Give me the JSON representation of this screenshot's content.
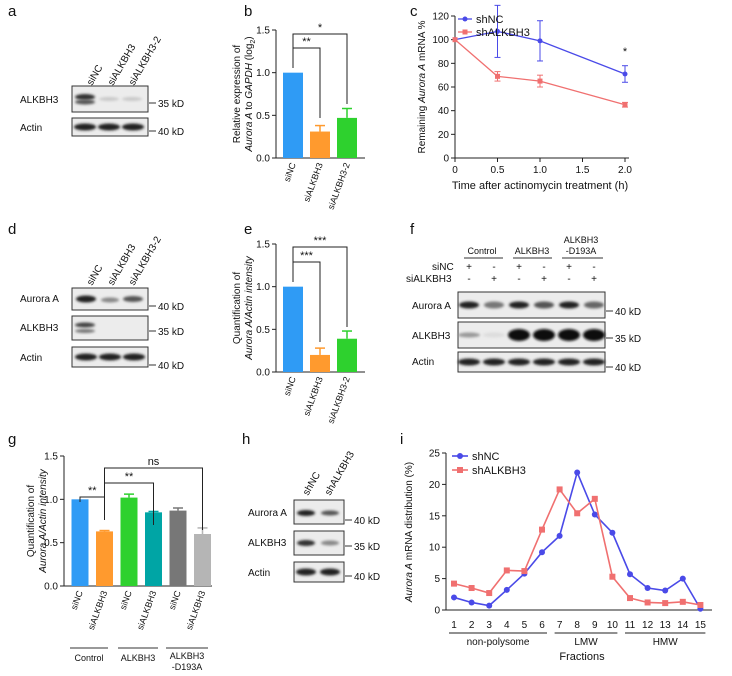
{
  "panels": {
    "a": {
      "letter": "a",
      "lanes": [
        "siNC",
        "siALKBH3",
        "siALKBH3-2"
      ],
      "rows": [
        "ALKBH3",
        "Actin"
      ],
      "markers": [
        "35 kD",
        "40 kD"
      ]
    },
    "d": {
      "letter": "d",
      "lanes": [
        "siNC",
        "siALKBH3",
        "siALKBH3-2"
      ],
      "rows": [
        "Aurora A",
        "ALKBH3",
        "Actin"
      ],
      "markers": [
        "40 kD",
        "35 kD",
        "40 kD"
      ]
    },
    "f": {
      "letter": "f",
      "groups": [
        "Control",
        "ALKBH3",
        "ALKBH3",
        "-D193A"
      ],
      "row_labels": [
        "siNC",
        "siALKBH3"
      ],
      "signs_nc": [
        "+",
        "-",
        "+",
        "-",
        "+",
        "-"
      ],
      "signs_si": [
        "-",
        "+",
        "-",
        "+",
        "-",
        "+"
      ],
      "rows": [
        "Aurora A",
        "ALKBH3",
        "Actin"
      ],
      "markers": [
        "40 kD",
        "35 kD",
        "40 kD"
      ]
    },
    "h": {
      "letter": "h",
      "lanes": [
        "shNC",
        "shALKBH3"
      ],
      "rows": [
        "Aurora A",
        "ALKBH3",
        "Actin"
      ],
      "markers": [
        "40 kD",
        "35 kD",
        "40 kD"
      ]
    },
    "g_groups": [
      "Control",
      "ALKBH3",
      "ALKBH3",
      "-D193A"
    ]
  },
  "chart_data": [
    {
      "id": "b",
      "letter": "b",
      "type": "bar",
      "ylabel_1": "Relative expression of",
      "ylabel_2_pre": "Aurora A",
      "ylabel_2_mid": " to ",
      "ylabel_2_gene": "GAPDH",
      "ylabel_2_post": " (log",
      "ylabel_sub": "2",
      "ylabel_close": ")",
      "categories": [
        "siNC",
        "siALKBH3",
        "siALKBH3-2"
      ],
      "values": [
        1.0,
        0.31,
        0.47
      ],
      "errors": [
        0,
        0.07,
        0.11
      ],
      "colors": [
        "#2f9bf5",
        "#ff9a2e",
        "#2ed12e"
      ],
      "ylim": [
        0,
        1.5
      ],
      "yticks": [
        "0.0",
        "0.5",
        "1.0",
        "1.5"
      ],
      "sig": [
        "**",
        "*"
      ]
    },
    {
      "id": "e",
      "letter": "e",
      "type": "bar",
      "ylabel_1": "Quantification of",
      "ylabel_2": "Aurora A/Actin intensity",
      "categories": [
        "siNC",
        "siALKBH3",
        "siALKBH3-2"
      ],
      "values": [
        1.0,
        0.2,
        0.39
      ],
      "errors": [
        0,
        0.08,
        0.09
      ],
      "colors": [
        "#2f9bf5",
        "#ff9a2e",
        "#2ed12e"
      ],
      "ylim": [
        0,
        1.5
      ],
      "yticks": [
        "0.0",
        "0.5",
        "1.0",
        "1.5"
      ],
      "sig": [
        "***",
        "***"
      ]
    },
    {
      "id": "c",
      "letter": "c",
      "type": "line",
      "ylabel_pre": "Remaining ",
      "ylabel_gene": "Aurora A",
      "ylabel_post": " mRNA %",
      "xlabel": "Time after actinomycin treatment (h)",
      "x": [
        0,
        0.5,
        1.0,
        2.0
      ],
      "xticks": [
        "0",
        "0.5",
        "1.0",
        "1.5",
        "2.0"
      ],
      "yticks": [
        "0",
        "20",
        "40",
        "60",
        "80",
        "100",
        "120"
      ],
      "xlim": [
        0,
        2.0
      ],
      "ylim": [
        0,
        120
      ],
      "series": [
        {
          "name": "shNC",
          "color": "#4a4ae8",
          "marker": "circle",
          "values": [
            100,
            107,
            99,
            71
          ],
          "errors": [
            0,
            22,
            17,
            7
          ]
        },
        {
          "name": "shALKBH3",
          "color": "#f07070",
          "marker": "square",
          "values": [
            100,
            69,
            65,
            45
          ],
          "errors": [
            0,
            4,
            5,
            2
          ]
        }
      ],
      "sig": "*"
    },
    {
      "id": "g",
      "letter": "g",
      "type": "bar",
      "ylabel_1": "Quantification of",
      "ylabel_2": "Aurora A/Actin intensity",
      "categories": [
        "siNC",
        "siALKBH3",
        "siNC",
        "siALKBH3",
        "siNC",
        "siALKBH3"
      ],
      "values": [
        1.0,
        0.63,
        1.02,
        0.85,
        0.87,
        0.6
      ],
      "errors": [
        0,
        0.01,
        0.04,
        0.01,
        0.03,
        0.07
      ],
      "colors": [
        "#2f9bf5",
        "#ff9a2e",
        "#2ed12e",
        "#00a5a5",
        "#777777",
        "#b5b5b5"
      ],
      "ylim": [
        0,
        1.5
      ],
      "yticks": [
        "0.0",
        "0.5",
        "1.0",
        "1.5"
      ],
      "sig": [
        "**",
        "**",
        "ns"
      ]
    },
    {
      "id": "i",
      "letter": "i",
      "type": "line",
      "ylabel_gene": "Aurora A",
      "ylabel_post": " mRNA distribution (%)",
      "xlabel": "Fractions",
      "x": [
        1,
        2,
        3,
        4,
        5,
        6,
        7,
        8,
        9,
        10,
        11,
        12,
        13,
        14,
        15
      ],
      "ylim": [
        0,
        25
      ],
      "yticks": [
        "0",
        "5",
        "10",
        "15",
        "20",
        "25"
      ],
      "xtick_labels": [
        "1",
        "2",
        "3",
        "4",
        "5",
        "6",
        "7",
        "8",
        "9",
        "10",
        "11",
        "12",
        "13",
        "14",
        "15"
      ],
      "regions": [
        "non-polysome",
        "LMW",
        "HMW"
      ],
      "series": [
        {
          "name": "shNC",
          "color": "#4a4ae8",
          "marker": "circle",
          "values": [
            2.0,
            1.2,
            0.7,
            3.2,
            5.8,
            9.2,
            11.8,
            21.9,
            15.2,
            12.3,
            5.7,
            3.5,
            3.1,
            5.0,
            0.2
          ]
        },
        {
          "name": "shALKBH3",
          "color": "#f07070",
          "marker": "square",
          "values": [
            4.2,
            3.5,
            2.7,
            6.3,
            6.2,
            12.8,
            19.2,
            15.4,
            17.7,
            5.3,
            1.9,
            1.2,
            1.1,
            1.3,
            0.8
          ]
        }
      ]
    }
  ]
}
